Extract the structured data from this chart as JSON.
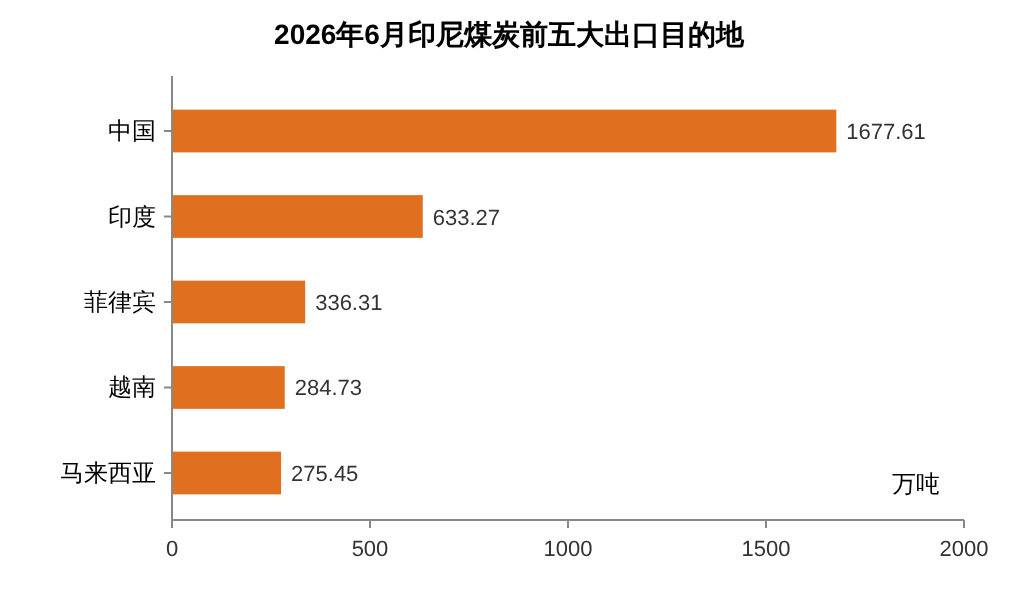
{
  "chart_data": {
    "type": "bar",
    "orientation": "horizontal",
    "title": "2026年6月印尼煤炭前五大出口目的地",
    "categories": [
      "中国",
      "印度",
      "菲律宾",
      "越南",
      "马来西亚"
    ],
    "values": [
      1677.61,
      633.27,
      336.31,
      284.73,
      275.45
    ],
    "color": "#e07020",
    "data_labels": true,
    "xlim": [
      0,
      2000
    ],
    "xticks": [
      0,
      500,
      1000,
      1500,
      2000
    ],
    "annotations": [
      "万吨"
    ]
  }
}
